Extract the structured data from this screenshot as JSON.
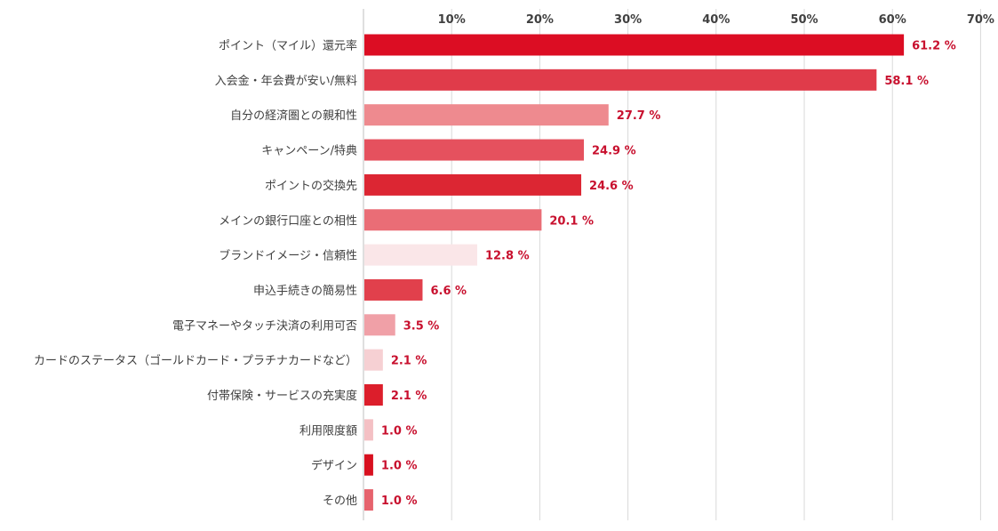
{
  "chart_data": {
    "type": "bar",
    "orientation": "horizontal",
    "title": "",
    "xlabel": "",
    "ylabel": "",
    "xlim": [
      0,
      70
    ],
    "tick_values": [
      10,
      20,
      30,
      40,
      50,
      60,
      70
    ],
    "tick_labels": [
      "10%",
      "20%",
      "30%",
      "40%",
      "50%",
      "60%",
      "70%"
    ],
    "grid": true,
    "value_suffix": " %",
    "categories": [
      "ポイント（マイル）還元率",
      "入会金・年会費が安い/無料",
      "自分の経済圏との親和性",
      "キャンペーン/特典",
      "ポイントの交換先",
      "メインの銀行口座との相性",
      "ブランドイメージ・信頼性",
      "申込手続きの簡易性",
      "電子マネーやタッチ決済の利用可否",
      "カードのステータス（ゴールドカード・プラチナカードなど）",
      "付帯保険・サービスの充実度",
      "利用限度額",
      "デザイン",
      "その他"
    ],
    "values": [
      61.2,
      58.1,
      27.7,
      24.9,
      24.6,
      20.1,
      12.8,
      6.6,
      3.5,
      2.1,
      2.1,
      1.0,
      1.0,
      1.0
    ],
    "value_labels": [
      "61.2 %",
      "58.1 %",
      "27.7 %",
      "24.9 %",
      "24.6 %",
      "20.1 %",
      "12.8 %",
      "6.6 %",
      "3.5 %",
      "2.1 %",
      "2.1 %",
      "1.0 %",
      "1.0 %",
      "1.0 %"
    ],
    "colors": [
      "#dc0d23",
      "#e03b4a",
      "#ee8a8f",
      "#e5515e",
      "#dc2633",
      "#ea6d76",
      "#fae6e8",
      "#e1404c",
      "#f0a0a7",
      "#f6d0d3",
      "#dc1e2b",
      "#f4c0c4",
      "#d8101f",
      "#e6636d"
    ],
    "value_label_color": "#c8102e"
  }
}
